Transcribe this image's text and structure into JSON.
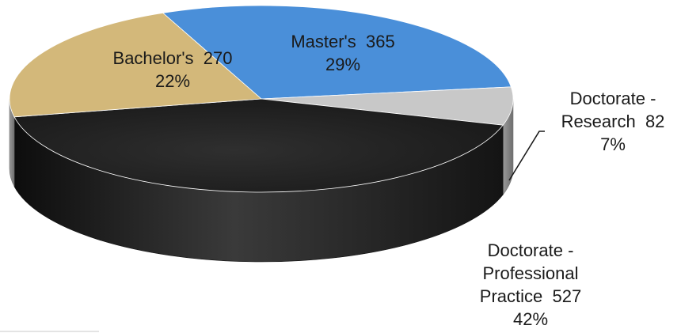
{
  "chart_data": {
    "type": "pie",
    "style": "3d",
    "title": "",
    "slices": [
      {
        "category": "Master's",
        "value": 365,
        "percent": "29%",
        "color": "#4a8fd9",
        "label_lines": [
          "Master's  365",
          "29%"
        ]
      },
      {
        "category": "Doctorate - Research",
        "value": 82,
        "percent": "7%",
        "color": "#c8c8c8",
        "label_lines": [
          "Doctorate -",
          "Research  82",
          "7%"
        ]
      },
      {
        "category": "Doctorate - Professional Practice",
        "value": 527,
        "percent": "42%",
        "color": "#2b2b2b",
        "label_lines": [
          "Doctorate -",
          "Professional",
          "Practice  527",
          "42%"
        ]
      },
      {
        "category": "Bachelor's",
        "value": 270,
        "percent": "22%",
        "color": "#d3b87a",
        "label_lines": [
          "Bachelor's  270",
          "22%"
        ]
      }
    ]
  }
}
